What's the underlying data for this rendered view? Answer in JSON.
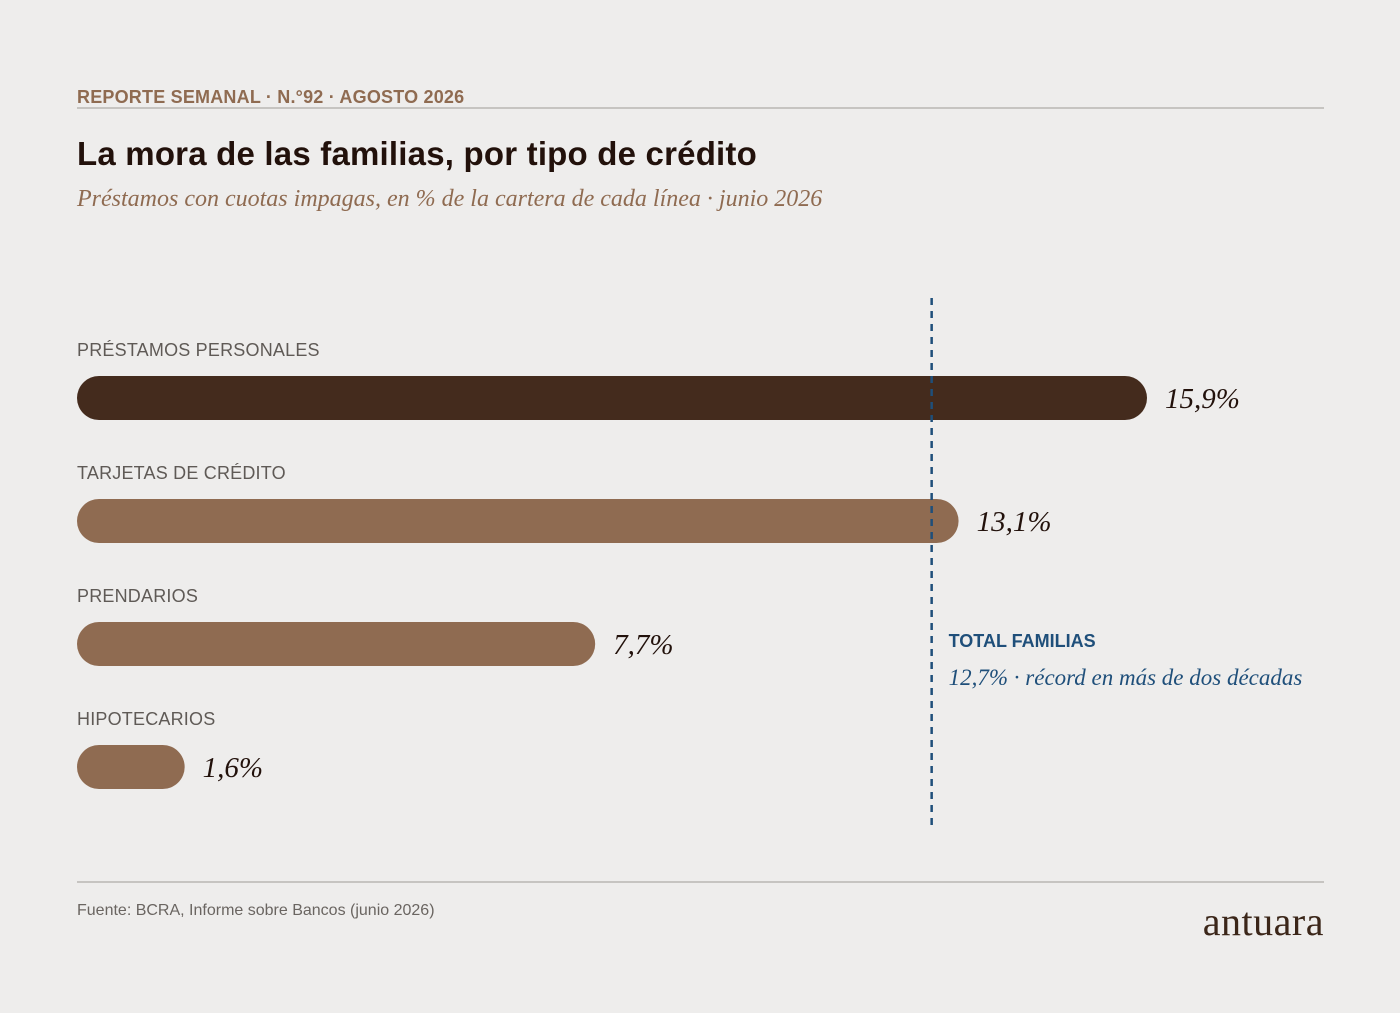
{
  "header": {
    "kicker": "REPORTE SEMANAL · N.°92 · AGOSTO 2026",
    "title": "La mora de las familias, por tipo de crédito",
    "subtitle": "Préstamos con cuotas impagas, en % de la cartera de cada línea · junio 2026"
  },
  "chart_data": {
    "type": "bar",
    "orientation": "horizontal",
    "categories": [
      "PRÉSTAMOS PERSONALES",
      "TARJETAS DE CRÉDITO",
      "PRENDARIOS",
      "HIPOTECARIOS"
    ],
    "values": [
      15.9,
      13.1,
      7.7,
      1.6
    ],
    "value_labels": [
      "15,9%",
      "13,1%",
      "7,7%",
      "1,6%"
    ],
    "unit": "%",
    "xlim": [
      0,
      15.9
    ],
    "grid": false,
    "highlight_category": "PRÉSTAMOS PERSONALES",
    "colors": {
      "highlight": "#442b1d",
      "default": "#8f6b51",
      "reference": "#1f4f7a"
    },
    "reference_line": {
      "value": 12.7,
      "label": "TOTAL FAMILIAS",
      "note": "12,7% · récord en más de dos décadas"
    }
  },
  "footer": {
    "source": "Fuente: BCRA, Informe sobre Bancos (junio 2026)",
    "logo_text": "antuara"
  }
}
